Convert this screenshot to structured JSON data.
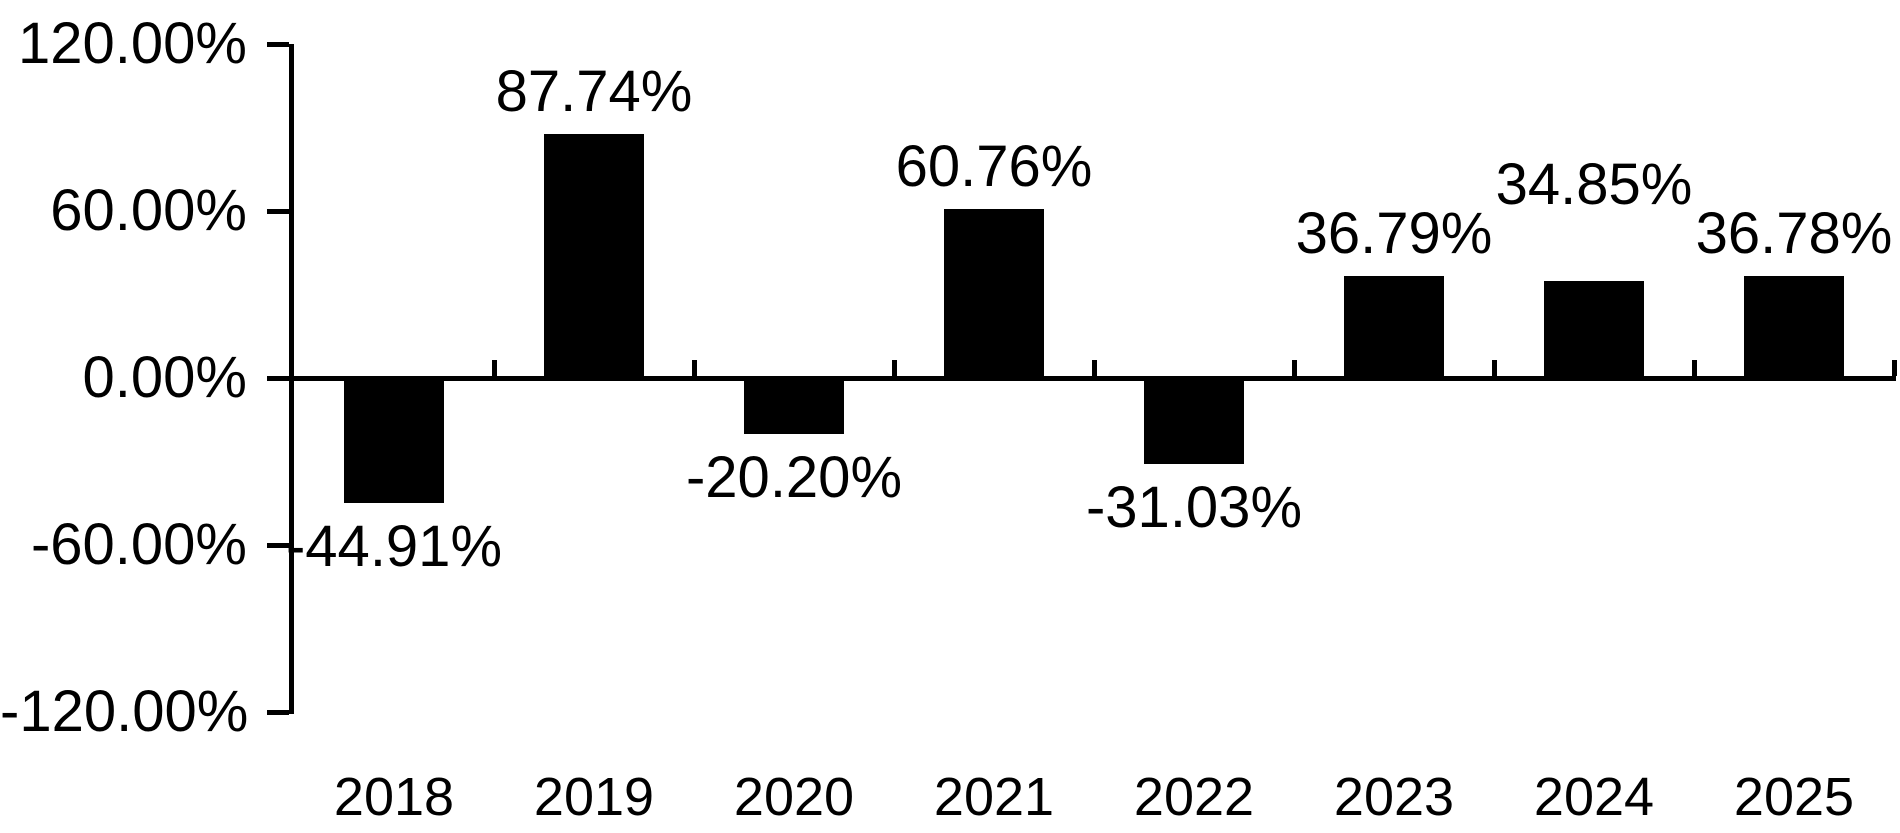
{
  "chart_data": {
    "type": "bar",
    "title": "",
    "xlabel": "",
    "ylabel": "",
    "categories": [
      "2018",
      "2019",
      "2020",
      "2021",
      "2022",
      "2023",
      "2024",
      "2025"
    ],
    "values": [
      -44.91,
      87.74,
      -20.2,
      60.76,
      -31.03,
      36.79,
      34.85,
      36.78
    ],
    "data_labels": [
      "-44.91%",
      "87.74%",
      "-20.20%",
      "60.76%",
      "-31.03%",
      "36.79%",
      "34.85%",
      "36.78%"
    ],
    "data_label_position": "outside-end",
    "data_label_dy": [
      0,
      0,
      0,
      0,
      0,
      0,
      -54,
      0
    ],
    "y_axis": {
      "tick_values": [
        120,
        60,
        0,
        -60,
        -120
      ],
      "tick_labels": [
        "120.00%",
        "60.00%",
        "0.00%",
        "-60.00%",
        "-120.00%"
      ],
      "min": -120,
      "max": 120,
      "step": 60
    },
    "ylim": [
      -120,
      120
    ],
    "grid": false,
    "legend": false,
    "bar_color": "#000000",
    "axis_color": "#000000",
    "text_color": "#000000",
    "background_color": "#ffffff"
  }
}
